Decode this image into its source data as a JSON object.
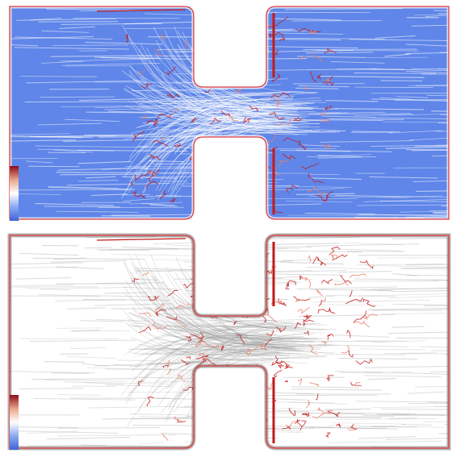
{
  "figure": {
    "panels": [
      {
        "id": "top",
        "fill_color": "#5f86e8",
        "streak_color": "#ffffff",
        "wall_highlight": "#c21a1a",
        "colorbar": [
          "#8b0a1a",
          "#e8a58a",
          "#ffffff",
          "#8aa8f0",
          "#3f63d8"
        ]
      },
      {
        "id": "bottom",
        "fill_color": "#ffffff",
        "streak_color": "#9a9a9a",
        "wall_highlight": "#c21a1a",
        "colorbar": [
          "#8b0a1a",
          "#e8a58a",
          "#ffffff",
          "#8aa8f0",
          "#3f63d8"
        ]
      }
    ],
    "outline_color": "#e23a3a"
  }
}
